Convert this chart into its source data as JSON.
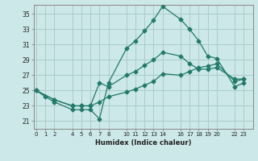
{
  "xlabel": "Humidex (Indice chaleur)",
  "ylabel": "",
  "bg_color": "#cce8e8",
  "grid_color": "#aacccc",
  "line_color": "#217a6a",
  "xtick_positions": [
    0,
    1,
    2,
    4,
    5,
    6,
    7,
    8,
    10,
    11,
    12,
    13,
    14,
    16,
    17,
    18,
    19,
    20,
    22,
    23
  ],
  "xtick_labels": [
    "0",
    "1",
    "2",
    "4",
    "5",
    "6",
    "7",
    "8",
    "10",
    "11",
    "12",
    "13",
    "14",
    "16",
    "17",
    "18",
    "19",
    "20",
    "22",
    "23"
  ],
  "ytick_positions": [
    21,
    23,
    25,
    27,
    29,
    31,
    33,
    35
  ],
  "ytick_labels": [
    "21",
    "23",
    "25",
    "27",
    "29",
    "31",
    "33",
    "35"
  ],
  "xlim": [
    -0.3,
    24.0
  ],
  "ylim": [
    20.0,
    36.2
  ],
  "line1_x": [
    0,
    1,
    2,
    4,
    5,
    6,
    7,
    8,
    10,
    11,
    12,
    13,
    14,
    16,
    17,
    18,
    19,
    20,
    22,
    23
  ],
  "line1_y": [
    25.0,
    24.2,
    23.5,
    22.5,
    22.5,
    22.5,
    21.3,
    26.0,
    30.5,
    31.5,
    32.8,
    34.2,
    36.0,
    34.3,
    33.0,
    31.5,
    29.5,
    29.2,
    25.5,
    26.0
  ],
  "line2_x": [
    0,
    2,
    4,
    5,
    6,
    7,
    8,
    10,
    11,
    12,
    13,
    14,
    16,
    17,
    18,
    19,
    20,
    22,
    23
  ],
  "line2_y": [
    25.0,
    23.8,
    23.0,
    23.0,
    23.0,
    26.0,
    25.5,
    27.0,
    27.5,
    28.3,
    29.0,
    30.0,
    29.5,
    28.5,
    27.8,
    27.8,
    28.0,
    26.5,
    26.5
  ],
  "line3_x": [
    0,
    2,
    4,
    5,
    6,
    7,
    8,
    10,
    11,
    12,
    13,
    14,
    16,
    17,
    18,
    19,
    20,
    22,
    23
  ],
  "line3_y": [
    25.0,
    23.8,
    23.0,
    23.0,
    23.0,
    23.5,
    24.2,
    24.8,
    25.2,
    25.7,
    26.2,
    27.2,
    27.0,
    27.5,
    28.0,
    28.2,
    28.5,
    26.2,
    26.5
  ]
}
